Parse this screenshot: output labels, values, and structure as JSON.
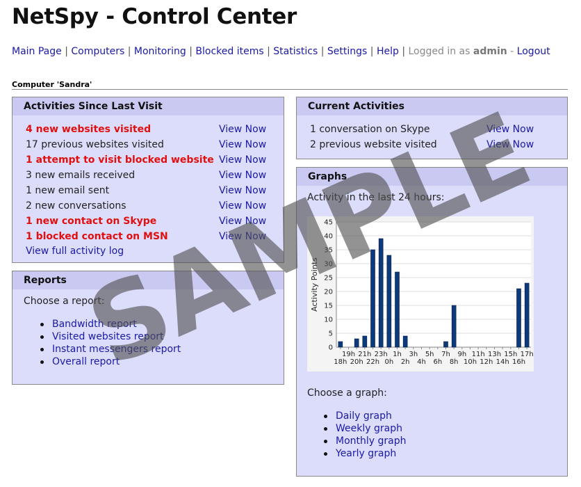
{
  "app_title": "NetSpy - Control Center",
  "nav": {
    "items": [
      "Main Page",
      "Computers",
      "Monitoring",
      "Blocked items",
      "Statistics",
      "Settings",
      "Help"
    ],
    "logged_in_prefix": "Logged in as",
    "user": "admin",
    "logout_sep": "-",
    "logout": "Logout"
  },
  "computer_label": "Computer 'Sandra'",
  "activities": {
    "title": "Activities Since Last Visit",
    "rows": [
      {
        "text": "4 new websites visited",
        "alert": true,
        "link": "View Now"
      },
      {
        "text": "17 previous websites visited",
        "alert": false,
        "link": "View Now"
      },
      {
        "text": "1 attempt to visit blocked website",
        "alert": true,
        "link": "View Now"
      },
      {
        "text": "3 new emails received",
        "alert": false,
        "link": "View Now"
      },
      {
        "text": "1 new email sent",
        "alert": false,
        "link": "View Now"
      },
      {
        "text": "2 new conversations",
        "alert": false,
        "link": "View Now"
      },
      {
        "text": "1 new contact on Skype",
        "alert": true,
        "link": "View Now"
      },
      {
        "text": "1 blocked contact on MSN",
        "alert": true,
        "link": "View Now"
      }
    ],
    "full_log": "View full activity log"
  },
  "reports": {
    "title": "Reports",
    "prompt": "Choose a report:",
    "items": [
      "Bandwidth report",
      "Visited websites report",
      "Instant messengers report",
      "Overall report"
    ]
  },
  "current": {
    "title": "Current Activities",
    "rows": [
      {
        "text": "1 conversation on Skype",
        "link": "View Now"
      },
      {
        "text": "2 previous website visited",
        "link": "View Now"
      }
    ]
  },
  "graphs": {
    "title": "Graphs",
    "caption": "Activity in the last 24 hours:",
    "prompt": "Choose a graph:",
    "items": [
      "Daily graph",
      "Weekly graph",
      "Monthly graph",
      "Yearly graph"
    ]
  },
  "watermark": "SAMPLE",
  "colors": {
    "alert": "#e01010",
    "link": "#1a1aa6",
    "panel": "#dcdcfb",
    "panel_header": "#c9c9f2",
    "bar": "#0d3a7a"
  },
  "chart_data": {
    "type": "bar",
    "title": "",
    "xlabel": "",
    "ylabel": "Activity Points",
    "ylim": [
      0,
      45
    ],
    "yticks": [
      0,
      5,
      10,
      15,
      20,
      25,
      30,
      35,
      40,
      45
    ],
    "categories": [
      "18h",
      "19h",
      "20h",
      "21h",
      "22h",
      "23h",
      "0h",
      "1h",
      "2h",
      "3h",
      "4h",
      "5h",
      "6h",
      "7h",
      "8h",
      "9h",
      "10h",
      "11h",
      "12h",
      "13h",
      "14h",
      "15h",
      "16h",
      "17h"
    ],
    "values": [
      2,
      0,
      3,
      4,
      35,
      39,
      33,
      27,
      4,
      0,
      0,
      0,
      0,
      2,
      15,
      0,
      0,
      0,
      0,
      0,
      0,
      0,
      21,
      23
    ],
    "grid": true,
    "legend": "none"
  }
}
